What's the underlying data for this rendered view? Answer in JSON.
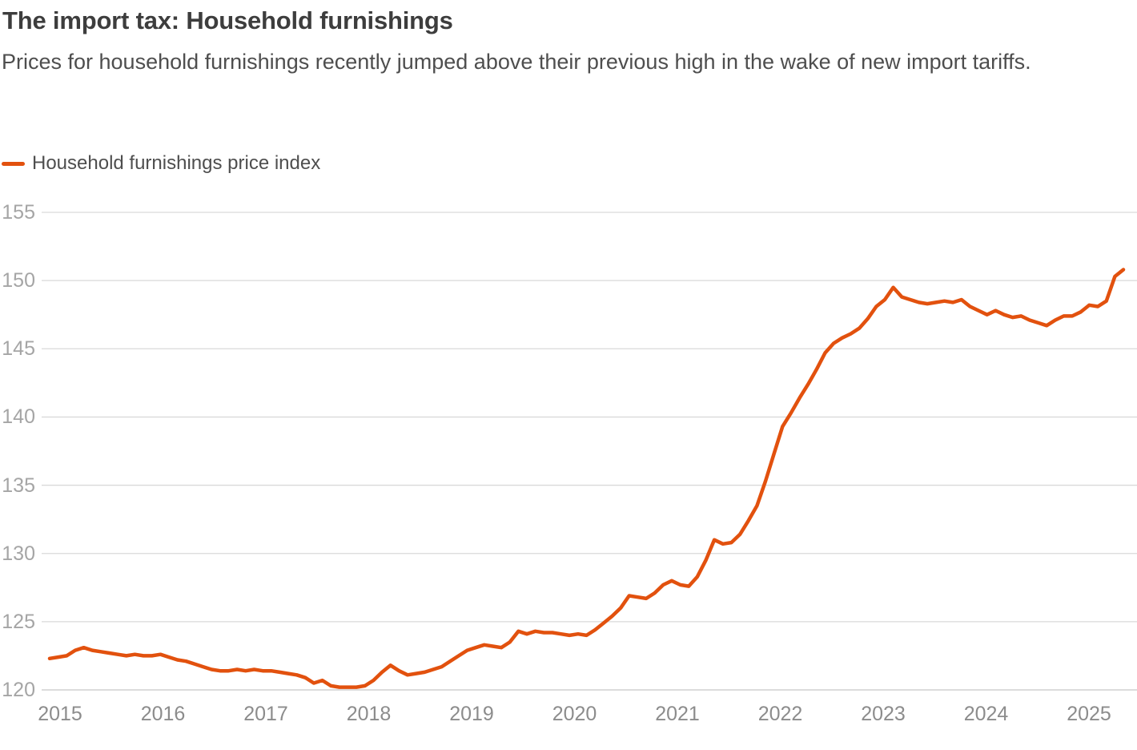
{
  "colors": {
    "line": "#e2510e",
    "title_text": "#3d3d3d",
    "subtitle_text": "#4e4e4e",
    "y_tick_text": "#a5a5a5",
    "x_tick_text": "#8c8c8c",
    "gridline": "#d9d9d9",
    "baseline": "#c8c8c8",
    "background": "#ffffff"
  },
  "chart_data": {
    "type": "line",
    "title": "The import tax: Household furnishings",
    "subtitle": "Prices for household furnishings recently jumped above their previous high in the wake of new import tariffs.",
    "xlabel": "",
    "ylabel": "",
    "frequency": "monthly",
    "x_start": "2015-01",
    "x_end": "2025-07",
    "x_ticks": [
      "2015",
      "2016",
      "2017",
      "2018",
      "2019",
      "2020",
      "2021",
      "2022",
      "2023",
      "2024",
      "2025"
    ],
    "y_ticks": [
      155,
      150,
      145,
      140,
      135,
      130,
      125,
      120
    ],
    "ylim": [
      120,
      155
    ],
    "grid": "horizontal",
    "legend_position": "top-left",
    "series": [
      {
        "name": "Household furnishings price index",
        "color": "#e2510e",
        "values": [
          122.3,
          122.4,
          122.5,
          122.9,
          123.1,
          122.9,
          122.8,
          122.7,
          122.6,
          122.5,
          122.6,
          122.5,
          122.5,
          122.6,
          122.4,
          122.2,
          122.1,
          121.9,
          121.7,
          121.5,
          121.4,
          121.4,
          121.5,
          121.4,
          121.5,
          121.4,
          121.4,
          121.3,
          121.2,
          121.1,
          120.9,
          120.5,
          120.7,
          120.3,
          120.2,
          120.2,
          120.2,
          120.3,
          120.7,
          121.3,
          121.8,
          121.4,
          121.1,
          121.2,
          121.3,
          121.5,
          121.7,
          122.1,
          122.5,
          122.9,
          123.1,
          123.3,
          123.2,
          123.1,
          123.5,
          124.3,
          124.1,
          124.3,
          124.2,
          124.2,
          124.1,
          124.0,
          124.1,
          124.0,
          124.4,
          124.9,
          125.4,
          126.0,
          126.9,
          126.8,
          126.7,
          127.1,
          127.7,
          128.0,
          127.7,
          127.6,
          128.3,
          129.5,
          131.0,
          130.7,
          130.8,
          131.4,
          132.4,
          133.5,
          135.3,
          137.3,
          139.3,
          140.3,
          141.4,
          142.4,
          143.5,
          144.7,
          145.4,
          145.8,
          146.1,
          146.5,
          147.2,
          148.1,
          148.6,
          149.5,
          148.8,
          148.6,
          148.4,
          148.3,
          148.4,
          148.5,
          148.4,
          148.6,
          148.1,
          147.8,
          147.5,
          147.8,
          147.5,
          147.3,
          147.4,
          147.1,
          146.9,
          146.7,
          147.1,
          147.4,
          147.4,
          147.7,
          148.2,
          148.1,
          148.5,
          150.3,
          150.8
        ]
      }
    ]
  }
}
